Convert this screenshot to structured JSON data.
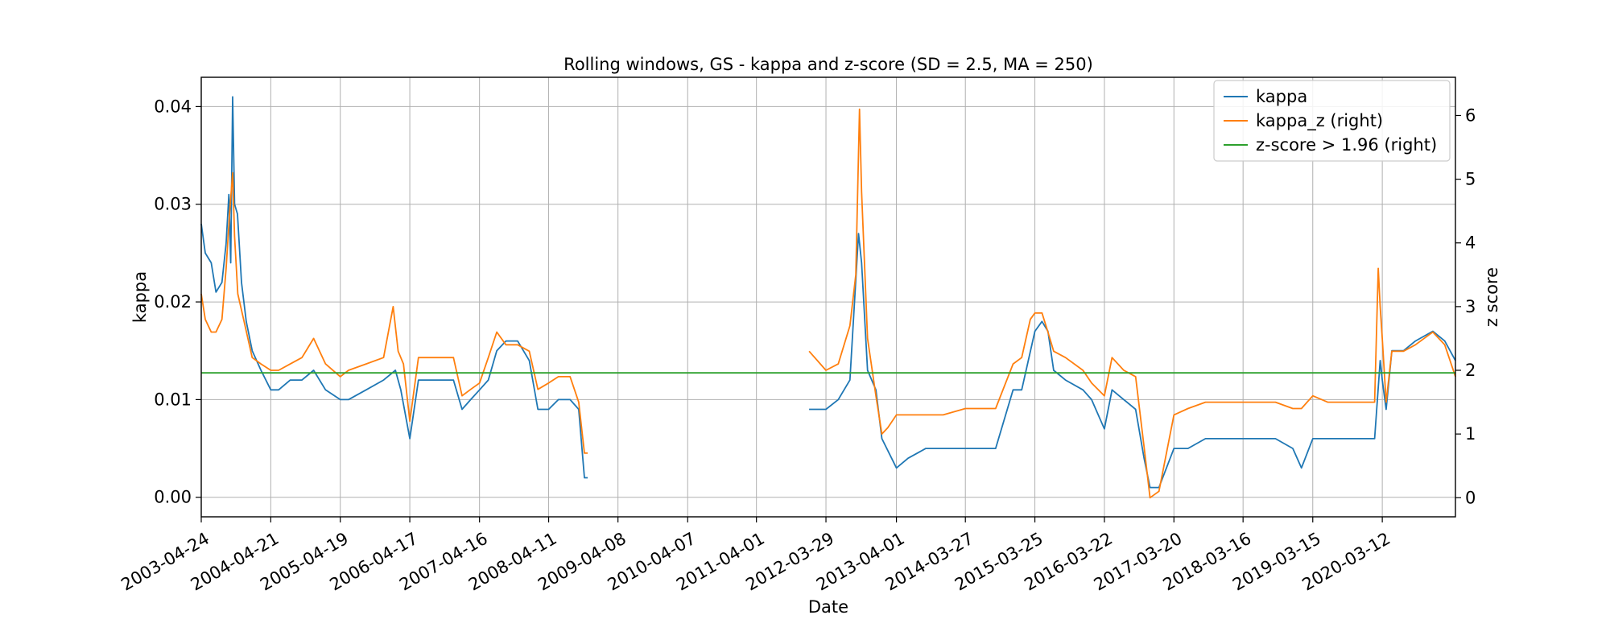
{
  "chart_data": {
    "type": "line",
    "title": "Rolling windows, GS - kappa and z-score (SD = 2.5, MA = 250)",
    "xlabel": "Date",
    "ylabel": "kappa",
    "y2label": "z score",
    "x_ticks": [
      "2003-04-24",
      "2004-04-21",
      "2005-04-19",
      "2006-04-17",
      "2007-04-16",
      "2008-04-11",
      "2009-04-08",
      "2010-04-07",
      "2011-04-01",
      "2012-03-29",
      "2013-04-01",
      "2014-03-27",
      "2015-03-25",
      "2016-03-22",
      "2017-03-20",
      "2018-03-16",
      "2019-03-15",
      "2020-03-12"
    ],
    "xlim": [
      "2003-04-24",
      "2021-03-29"
    ],
    "ylim": [
      -0.002,
      0.043
    ],
    "y_ticks": [
      "0.00",
      "0.01",
      "0.02",
      "0.03",
      "0.04"
    ],
    "y2lim": [
      -0.3,
      6.6
    ],
    "y2_ticks": [
      "0",
      "1",
      "2",
      "3",
      "4",
      "5",
      "6"
    ],
    "grid": true,
    "legend_position": "top-right",
    "series": [
      {
        "name": "kappa",
        "axis": "left",
        "color": "#1f77b4",
        "segments": [
          [
            [
              "2003-04-24",
              0.028
            ],
            [
              "2003-05-15",
              0.025
            ],
            [
              "2003-06-15",
              0.024
            ],
            [
              "2003-07-10",
              0.021
            ],
            [
              "2003-08-10",
              0.022
            ],
            [
              "2003-09-01",
              0.026
            ],
            [
              "2003-09-15",
              0.031
            ],
            [
              "2003-09-25",
              0.024
            ],
            [
              "2003-10-05",
              0.041
            ],
            [
              "2003-10-15",
              0.03
            ],
            [
              "2003-10-30",
              0.029
            ],
            [
              "2003-11-20",
              0.022
            ],
            [
              "2003-12-15",
              0.018
            ],
            [
              "2004-01-15",
              0.015
            ],
            [
              "2004-03-01",
              0.013
            ],
            [
              "2004-04-21",
              0.011
            ],
            [
              "2004-06-01",
              0.011
            ],
            [
              "2004-08-01",
              0.012
            ],
            [
              "2004-10-01",
              0.012
            ],
            [
              "2004-12-01",
              0.013
            ],
            [
              "2005-02-01",
              0.011
            ],
            [
              "2005-04-19",
              0.01
            ],
            [
              "2005-06-01",
              0.01
            ],
            [
              "2005-09-01",
              0.011
            ],
            [
              "2005-12-01",
              0.012
            ],
            [
              "2006-02-01",
              0.013
            ],
            [
              "2006-03-01",
              0.011
            ],
            [
              "2006-04-17",
              0.006
            ],
            [
              "2006-06-01",
              0.012
            ],
            [
              "2006-09-01",
              0.012
            ],
            [
              "2006-12-01",
              0.012
            ],
            [
              "2007-01-15",
              0.009
            ],
            [
              "2007-03-01",
              0.01
            ],
            [
              "2007-04-16",
              0.011
            ],
            [
              "2007-06-01",
              0.012
            ],
            [
              "2007-07-15",
              0.015
            ],
            [
              "2007-09-01",
              0.016
            ],
            [
              "2007-11-01",
              0.016
            ],
            [
              "2008-01-01",
              0.014
            ],
            [
              "2008-02-15",
              0.009
            ],
            [
              "2008-04-11",
              0.009
            ],
            [
              "2008-06-01",
              0.01
            ],
            [
              "2008-08-01",
              0.01
            ],
            [
              "2008-09-15",
              0.009
            ],
            [
              "2008-10-15",
              0.002
            ],
            [
              "2008-11-01",
              0.002
            ]
          ],
          [
            [
              "2012-01-01",
              0.009
            ],
            [
              "2012-03-29",
              0.009
            ],
            [
              "2012-06-01",
              0.01
            ],
            [
              "2012-08-01",
              0.012
            ],
            [
              "2012-09-15",
              0.027
            ],
            [
              "2012-10-01",
              0.024
            ],
            [
              "2012-11-01",
              0.013
            ],
            [
              "2012-12-15",
              0.011
            ],
            [
              "2013-01-15",
              0.006
            ],
            [
              "2013-04-01",
              0.003
            ],
            [
              "2013-06-01",
              0.004
            ],
            [
              "2013-09-01",
              0.005
            ],
            [
              "2013-12-01",
              0.005
            ],
            [
              "2014-03-27",
              0.005
            ],
            [
              "2014-06-01",
              0.005
            ],
            [
              "2014-09-01",
              0.005
            ],
            [
              "2014-12-01",
              0.011
            ],
            [
              "2015-01-15",
              0.011
            ],
            [
              "2015-03-25",
              0.017
            ],
            [
              "2015-05-01",
              0.018
            ],
            [
              "2015-06-01",
              0.017
            ],
            [
              "2015-07-01",
              0.013
            ],
            [
              "2015-09-01",
              0.012
            ],
            [
              "2015-12-01",
              0.011
            ],
            [
              "2016-01-15",
              0.01
            ],
            [
              "2016-03-22",
              0.007
            ],
            [
              "2016-05-01",
              0.011
            ],
            [
              "2016-07-01",
              0.01
            ],
            [
              "2016-09-01",
              0.009
            ],
            [
              "2016-10-15",
              0.004
            ],
            [
              "2016-11-15",
              0.001
            ],
            [
              "2017-01-01",
              0.001
            ],
            [
              "2017-03-20",
              0.005
            ],
            [
              "2017-06-01",
              0.005
            ],
            [
              "2017-09-01",
              0.006
            ],
            [
              "2017-12-01",
              0.006
            ],
            [
              "2018-03-16",
              0.006
            ],
            [
              "2018-06-01",
              0.006
            ],
            [
              "2018-09-01",
              0.006
            ],
            [
              "2018-12-01",
              0.005
            ],
            [
              "2019-01-15",
              0.003
            ],
            [
              "2019-03-15",
              0.006
            ],
            [
              "2019-06-01",
              0.006
            ],
            [
              "2019-09-01",
              0.006
            ],
            [
              "2019-12-01",
              0.006
            ],
            [
              "2020-02-01",
              0.006
            ],
            [
              "2020-03-01",
              0.014
            ],
            [
              "2020-03-12",
              0.012
            ],
            [
              "2020-04-01",
              0.009
            ],
            [
              "2020-05-01",
              0.015
            ],
            [
              "2020-07-01",
              0.015
            ],
            [
              "2020-09-01",
              0.016
            ],
            [
              "2020-12-01",
              0.017
            ],
            [
              "2021-02-01",
              0.016
            ],
            [
              "2021-03-29",
              0.014
            ]
          ]
        ]
      },
      {
        "name": "kappa_z (right)",
        "axis": "right",
        "color": "#ff7f0e",
        "segments": [
          [
            [
              "2003-04-24",
              3.2
            ],
            [
              "2003-05-15",
              2.8
            ],
            [
              "2003-06-15",
              2.6
            ],
            [
              "2003-07-10",
              2.6
            ],
            [
              "2003-08-10",
              2.8
            ],
            [
              "2003-09-01",
              3.6
            ],
            [
              "2003-09-20",
              4.5
            ],
            [
              "2003-10-05",
              5.1
            ],
            [
              "2003-10-15",
              4.1
            ],
            [
              "2003-11-01",
              3.2
            ],
            [
              "2003-12-01",
              2.8
            ],
            [
              "2004-01-15",
              2.2
            ],
            [
              "2004-03-01",
              2.1
            ],
            [
              "2004-04-21",
              2.0
            ],
            [
              "2004-06-01",
              2.0
            ],
            [
              "2004-08-01",
              2.1
            ],
            [
              "2004-10-01",
              2.2
            ],
            [
              "2004-12-01",
              2.5
            ],
            [
              "2005-02-01",
              2.1
            ],
            [
              "2005-04-19",
              1.9
            ],
            [
              "2005-06-01",
              2.0
            ],
            [
              "2005-09-01",
              2.1
            ],
            [
              "2005-12-01",
              2.2
            ],
            [
              "2006-01-20",
              3.0
            ],
            [
              "2006-02-15",
              2.3
            ],
            [
              "2006-03-15",
              2.1
            ],
            [
              "2006-04-17",
              1.2
            ],
            [
              "2006-06-01",
              2.2
            ],
            [
              "2006-09-01",
              2.2
            ],
            [
              "2006-12-01",
              2.2
            ],
            [
              "2007-01-15",
              1.6
            ],
            [
              "2007-03-01",
              1.7
            ],
            [
              "2007-04-16",
              1.8
            ],
            [
              "2007-06-01",
              2.2
            ],
            [
              "2007-07-15",
              2.6
            ],
            [
              "2007-09-01",
              2.4
            ],
            [
              "2007-11-01",
              2.4
            ],
            [
              "2008-01-01",
              2.3
            ],
            [
              "2008-02-15",
              1.7
            ],
            [
              "2008-04-11",
              1.8
            ],
            [
              "2008-06-01",
              1.9
            ],
            [
              "2008-08-01",
              1.9
            ],
            [
              "2008-09-15",
              1.5
            ],
            [
              "2008-10-15",
              0.7
            ],
            [
              "2008-11-01",
              0.7
            ]
          ],
          [
            [
              "2012-01-01",
              2.3
            ],
            [
              "2012-03-29",
              2.0
            ],
            [
              "2012-06-01",
              2.1
            ],
            [
              "2012-08-01",
              2.7
            ],
            [
              "2012-09-01",
              3.5
            ],
            [
              "2012-09-20",
              6.1
            ],
            [
              "2012-10-01",
              4.8
            ],
            [
              "2012-11-01",
              2.5
            ],
            [
              "2012-12-15",
              1.6
            ],
            [
              "2013-01-15",
              1.0
            ],
            [
              "2013-02-15",
              1.1
            ],
            [
              "2013-04-01",
              1.3
            ],
            [
              "2013-06-01",
              1.3
            ],
            [
              "2013-09-01",
              1.3
            ],
            [
              "2013-12-01",
              1.3
            ],
            [
              "2014-03-27",
              1.4
            ],
            [
              "2014-06-01",
              1.4
            ],
            [
              "2014-09-01",
              1.4
            ],
            [
              "2014-12-01",
              2.1
            ],
            [
              "2015-01-15",
              2.2
            ],
            [
              "2015-03-01",
              2.8
            ],
            [
              "2015-03-25",
              2.9
            ],
            [
              "2015-05-01",
              2.9
            ],
            [
              "2015-06-01",
              2.6
            ],
            [
              "2015-07-01",
              2.3
            ],
            [
              "2015-09-01",
              2.2
            ],
            [
              "2015-12-01",
              2.0
            ],
            [
              "2016-01-15",
              1.8
            ],
            [
              "2016-03-22",
              1.6
            ],
            [
              "2016-05-01",
              2.2
            ],
            [
              "2016-07-01",
              2.0
            ],
            [
              "2016-09-01",
              1.9
            ],
            [
              "2016-10-15",
              0.8
            ],
            [
              "2016-11-15",
              0.0
            ],
            [
              "2017-01-01",
              0.1
            ],
            [
              "2017-03-20",
              1.3
            ],
            [
              "2017-06-01",
              1.4
            ],
            [
              "2017-09-01",
              1.5
            ],
            [
              "2017-12-01",
              1.5
            ],
            [
              "2018-03-16",
              1.5
            ],
            [
              "2018-06-01",
              1.5
            ],
            [
              "2018-09-01",
              1.5
            ],
            [
              "2018-12-01",
              1.4
            ],
            [
              "2019-01-15",
              1.4
            ],
            [
              "2019-03-15",
              1.6
            ],
            [
              "2019-06-01",
              1.5
            ],
            [
              "2019-09-01",
              1.5
            ],
            [
              "2019-12-01",
              1.5
            ],
            [
              "2020-02-01",
              1.5
            ],
            [
              "2020-02-20",
              3.6
            ],
            [
              "2020-03-01",
              3.0
            ],
            [
              "2020-03-12",
              2.5
            ],
            [
              "2020-04-01",
              1.5
            ],
            [
              "2020-05-01",
              2.3
            ],
            [
              "2020-07-01",
              2.3
            ],
            [
              "2020-09-01",
              2.4
            ],
            [
              "2020-12-01",
              2.6
            ],
            [
              "2021-02-01",
              2.4
            ],
            [
              "2021-03-29",
              1.9
            ]
          ]
        ]
      },
      {
        "name": "z-score > 1.96 (right)",
        "axis": "right",
        "color": "#2ca02c",
        "segments": [
          [
            [
              "2003-04-24",
              1.96
            ],
            [
              "2021-03-29",
              1.96
            ]
          ]
        ]
      }
    ]
  }
}
